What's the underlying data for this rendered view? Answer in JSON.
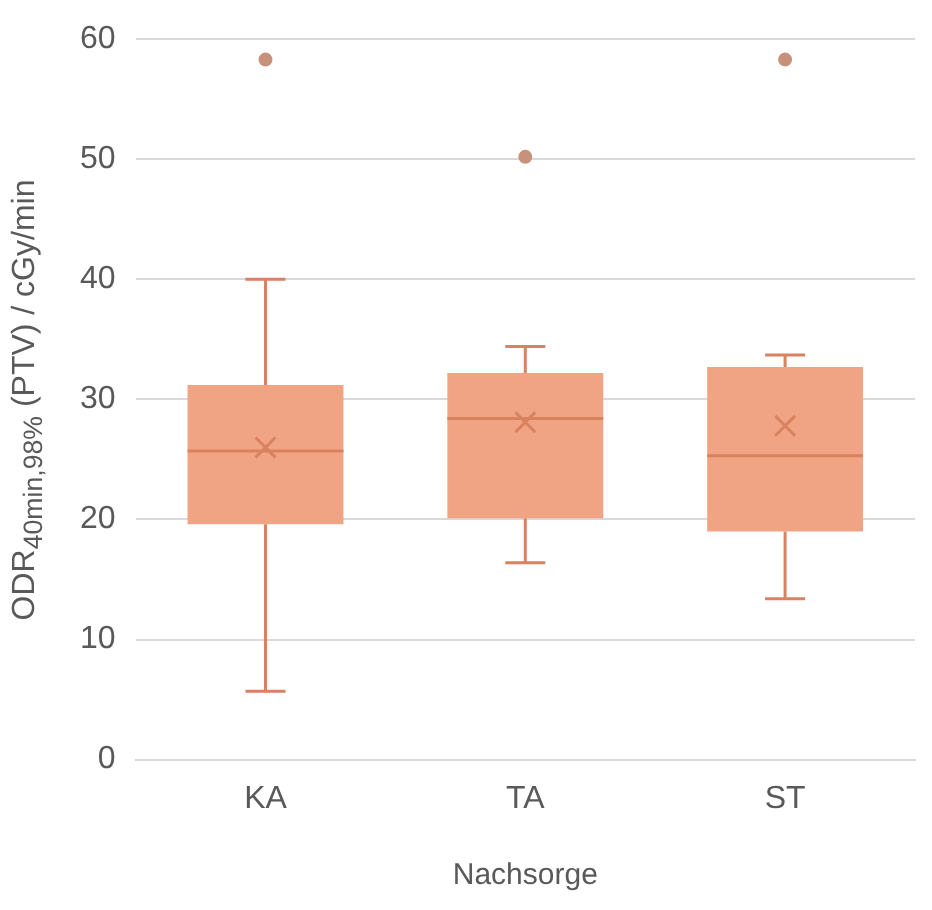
{
  "chart_data": {
    "type": "box",
    "xlabel": "Nachsorge",
    "ylabel": "ODR$_{40min,98%}$ (PTV) / cGy/min",
    "categories": [
      "KA",
      "TA",
      "ST"
    ],
    "boxes": [
      {
        "low": 5.7,
        "q1": 19.6,
        "median": 25.7,
        "q3": 31.2,
        "high": 40,
        "mean": 26,
        "outliers": [
          58.3
        ]
      },
      {
        "low": 16.4,
        "q1": 20.1,
        "median": 28.4,
        "q3": 32.2,
        "high": 34.4,
        "mean": 28.1,
        "outliers": [
          50.2
        ]
      },
      {
        "low": 13.4,
        "q1": 19,
        "median": 25.3,
        "q3": 32.7,
        "high": 33.7,
        "mean": 27.8,
        "outliers": [
          58.3
        ]
      }
    ],
    "color": "#f0a484",
    "ylim": [
      0,
      60
    ],
    "yticks": [
      0,
      10,
      20,
      30,
      40,
      50,
      60
    ],
    "grid": "y",
    "legend": false
  }
}
